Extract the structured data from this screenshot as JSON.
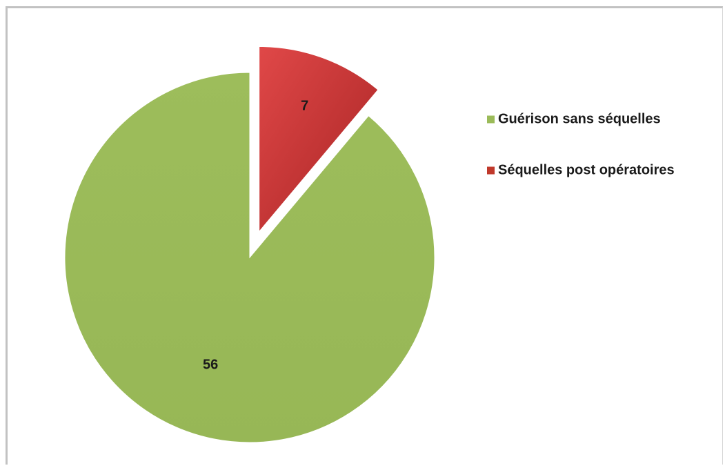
{
  "chart_data": {
    "type": "pie",
    "categories": [
      "Guérison sans séquelles",
      "Séquelles post opératoires"
    ],
    "values": [
      56,
      7
    ],
    "colors": [
      "#9bbb59",
      "#c0392b"
    ],
    "exploded": [
      false,
      true
    ],
    "start_angle_deg": 0,
    "direction": "counterclockwise",
    "legend_position": "right",
    "data_labels": [
      "56",
      "7"
    ],
    "title": ""
  }
}
